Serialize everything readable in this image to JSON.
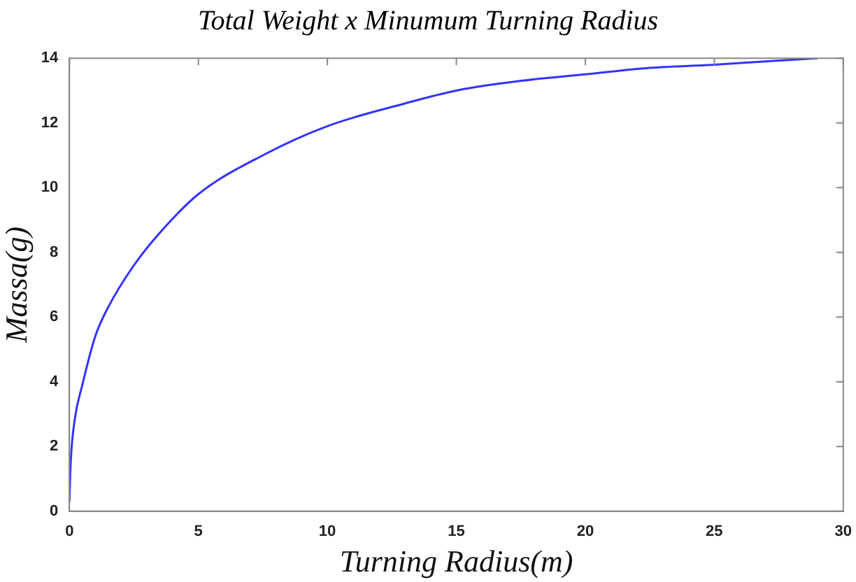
{
  "chart_data": {
    "type": "line",
    "title": "Total Weight x Minumum Turning Radius",
    "xlabel": "Turning Radius(m)",
    "ylabel": "Massa(g)",
    "x": [
      0,
      0.05,
      0.2,
      0.5,
      1,
      1.5,
      2.5,
      3.5,
      5,
      7.5,
      10,
      13,
      15,
      17.5,
      20,
      22.5,
      25,
      27,
      29
    ],
    "series": [
      {
        "color": "#3333ff",
        "values": [
          0.3,
          1.5,
          2.8,
          3.9,
          5.4,
          6.3,
          7.6,
          8.6,
          9.8,
          11,
          11.9,
          12.6,
          13,
          13.3,
          13.5,
          13.7,
          13.8,
          13.9,
          14
        ]
      }
    ],
    "xlim": [
      0,
      30
    ],
    "xticks": [
      0,
      5,
      10,
      15,
      20,
      25,
      30
    ],
    "ylim": [
      0,
      14
    ],
    "yticks": [
      0,
      2,
      4,
      6,
      8,
      10,
      12,
      14
    ],
    "grid": false,
    "legend": false,
    "marker": "none",
    "line_style": "solid"
  }
}
